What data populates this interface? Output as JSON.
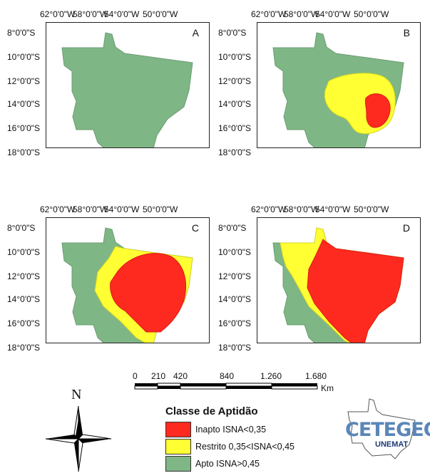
{
  "panels": [
    {
      "letter": "A",
      "x_labels": [
        "62°0'0\"W",
        "58°0'0\"W",
        "54°0'0\"W",
        "50°0'0\"W"
      ],
      "y_labels": [
        "8°0'0\"S",
        "10°0'0\"S",
        "12°0'0\"S",
        "14°0'0\"S",
        "16°0'0\"S",
        "18°0'0\"S"
      ]
    },
    {
      "letter": "B",
      "x_labels": [
        "62°0'0\"W",
        "58°0'0\"W",
        "54°0'0\"W",
        "50°0'0\"W"
      ],
      "y_labels": [
        "8°0'0\"S",
        "10°0'0\"S",
        "12°0'0\"S",
        "14°0'0\"S",
        "16°0'0\"S",
        "18°0'0\"S"
      ]
    },
    {
      "letter": "C",
      "x_labels": [
        "62°0'0\"W",
        "58°0'0\"W",
        "54°0'0\"W",
        "50°0'0\"W"
      ],
      "y_labels": [
        "8°0'0\"S",
        "10°0'0\"S",
        "12°0'0\"S",
        "14°0'0\"S",
        "16°0'0\"S",
        "18°0'0\"S"
      ]
    },
    {
      "letter": "D",
      "x_labels": [
        "62°0'0\"W",
        "58°0'0\"W",
        "54°0'0\"W",
        "50°0'0\"W"
      ],
      "y_labels": [
        "8°0'0\"S",
        "10°0'0\"S",
        "12°0'0\"S",
        "14°0'0\"S",
        "16°0'0\"S",
        "18°0'0\"S"
      ]
    }
  ],
  "scale_bar": {
    "labels": [
      "0",
      "210",
      "420",
      "840",
      "1.260",
      "1.680"
    ],
    "unit": "Km"
  },
  "north_arrow": {
    "label": "N"
  },
  "legend": {
    "title": "Classe de Aptidão",
    "items": [
      {
        "label": "Inapto ISNA<0,35",
        "color": "#ff2a1f"
      },
      {
        "label": "Restrito 0,35<ISNA<0,45",
        "color": "#ffff33"
      },
      {
        "label": "Apto ISNA>0,45",
        "color": "#7fb686"
      }
    ]
  },
  "logo": {
    "text": "CETEGEO",
    "subtext": "UNEMAT"
  }
}
